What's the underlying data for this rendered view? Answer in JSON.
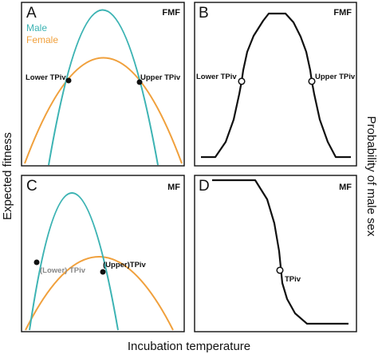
{
  "axis_titles": {
    "x": "Incubation temperature",
    "y_left": "Expected fitness",
    "y_right": "Probability of male sex"
  },
  "legend": {
    "male": "Male",
    "female": "Female"
  },
  "colors": {
    "male": "#3cb3b3",
    "female": "#f0a03c",
    "sex_curve": "#111111",
    "frame": "#111111",
    "marker_filled": "#111111",
    "marker_open": "#ffffff",
    "lower_tpiv_c": "#888888"
  },
  "panels": {
    "a": {
      "letter": "A",
      "mode": "FMF",
      "lower_label": "Lower TPiv",
      "upper_label": "Upper TPiv"
    },
    "b": {
      "letter": "B",
      "mode": "FMF",
      "lower_label": "Lower TPiv",
      "upper_label": "Upper TPiv"
    },
    "c": {
      "letter": "C",
      "mode": "MF",
      "lower_label": "(Lower) TPiv",
      "upper_label": "(Upper)TPiv"
    },
    "d": {
      "letter": "D",
      "mode": "MF",
      "pivot_label": "TPiv"
    }
  }
}
